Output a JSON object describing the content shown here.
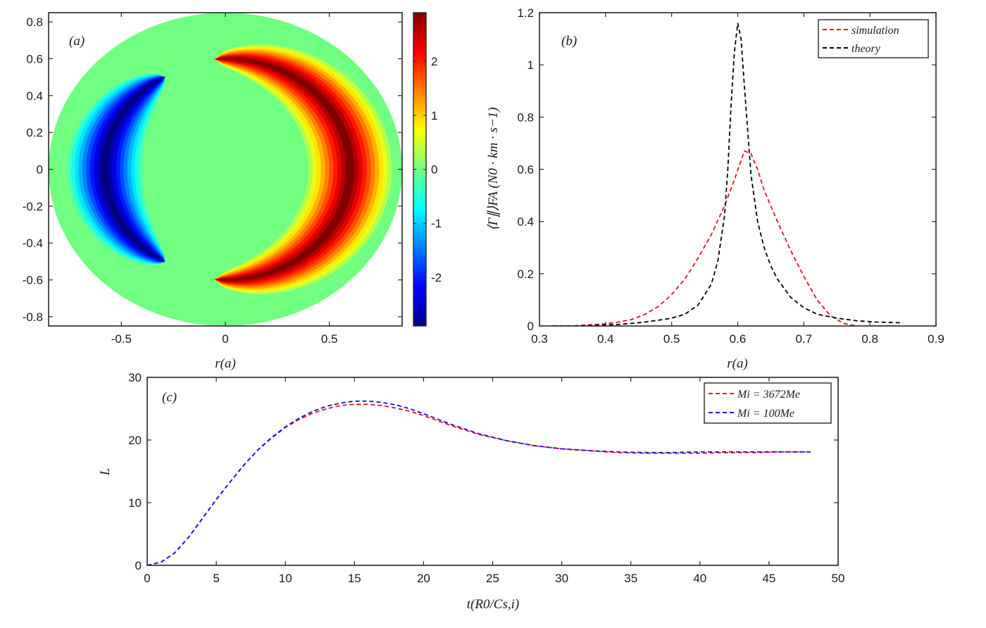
{
  "panels": {
    "a": {
      "label": "(a)"
    },
    "b": {
      "label": "(b)"
    },
    "c": {
      "label": "(c)"
    }
  },
  "colors": {
    "simulation": "#e8101a",
    "theory": "#000000",
    "mi_3672": "#e8101a",
    "mi_100": "#1010e0",
    "background_field": "#70ff80"
  },
  "chart_data": [
    {
      "type": "heatmap",
      "xlabel": "r(a)",
      "ylabel": "",
      "xlim": [
        -0.85,
        0.85
      ],
      "ylim": [
        -0.85,
        0.85
      ],
      "xticks": [
        "-0.5",
        "0",
        "0.5"
      ],
      "yticks": [
        "-0.8",
        "-0.6",
        "-0.4",
        "-0.2",
        "0",
        "0.2",
        "0.4",
        "0.6",
        "0.8"
      ],
      "colorbar": {
        "range": [
          -2.9,
          2.9
        ],
        "ticks": [
          "-2",
          "-1",
          "0",
          "1",
          "2"
        ],
        "colormap": "jet"
      },
      "field": {
        "domain_radius": 0.85,
        "positive_crescent": {
          "center_radius": 0.6,
          "peak_value": 2.9,
          "side": "right",
          "angular_extent_deg": [
            -95,
            95
          ]
        },
        "negative_crescent": {
          "center_radius": 0.6,
          "peak_value": -2.9,
          "side": "left",
          "angular_extent_deg": [
            120,
            240
          ]
        }
      }
    },
    {
      "type": "line",
      "xlabel": "r(a)",
      "ylabel": "⟨Γ∥⟩FA (N0 · km · s−1)",
      "xlim": [
        0.3,
        0.9
      ],
      "ylim": [
        0,
        1.2
      ],
      "xticks": [
        "0.3",
        "0.4",
        "0.5",
        "0.6",
        "0.7",
        "0.8",
        "0.9"
      ],
      "yticks": [
        "0",
        "0.2",
        "0.4",
        "0.6",
        "0.8",
        "1",
        "1.2"
      ],
      "legend": "top-right",
      "series": [
        {
          "name": "simulation",
          "x": [
            0.32,
            0.35,
            0.38,
            0.4,
            0.42,
            0.44,
            0.46,
            0.48,
            0.5,
            0.52,
            0.54,
            0.56,
            0.58,
            0.595,
            0.61,
            0.62,
            0.63,
            0.64,
            0.66,
            0.68,
            0.7,
            0.72,
            0.74,
            0.76,
            0.78,
            0.8,
            0.82,
            0.84
          ],
          "y": [
            0.0,
            0.0,
            0.005,
            0.008,
            0.015,
            0.025,
            0.045,
            0.075,
            0.12,
            0.18,
            0.26,
            0.35,
            0.46,
            0.56,
            0.67,
            0.66,
            0.6,
            0.52,
            0.4,
            0.29,
            0.19,
            0.1,
            0.04,
            0.01,
            0.0,
            0.0,
            0.0,
            0.0
          ]
        },
        {
          "name": "theory",
          "x": [
            0.32,
            0.35,
            0.38,
            0.4,
            0.42,
            0.44,
            0.46,
            0.48,
            0.5,
            0.52,
            0.54,
            0.56,
            0.57,
            0.58,
            0.585,
            0.59,
            0.595,
            0.6,
            0.605,
            0.61,
            0.615,
            0.62,
            0.63,
            0.64,
            0.65,
            0.66,
            0.68,
            0.7,
            0.72,
            0.75,
            0.78,
            0.81,
            0.85
          ],
          "y": [
            0.0,
            0.0,
            0.002,
            0.004,
            0.006,
            0.01,
            0.015,
            0.022,
            0.03,
            0.045,
            0.08,
            0.16,
            0.25,
            0.42,
            0.6,
            0.85,
            1.05,
            1.16,
            1.1,
            0.92,
            0.75,
            0.58,
            0.4,
            0.3,
            0.23,
            0.18,
            0.11,
            0.07,
            0.045,
            0.03,
            0.02,
            0.015,
            0.012
          ]
        }
      ]
    },
    {
      "type": "line",
      "xlabel": "t(R0/Cs,i)",
      "ylabel": "L",
      "xlim": [
        0,
        50
      ],
      "ylim": [
        0,
        30
      ],
      "xticks": [
        "0",
        "5",
        "10",
        "15",
        "20",
        "25",
        "30",
        "35",
        "40",
        "45",
        "50"
      ],
      "yticks": [
        "0",
        "10",
        "20",
        "30"
      ],
      "legend": "top-right",
      "series": [
        {
          "name": "Mi = 3672Me",
          "x": [
            0,
            1,
            2,
            3,
            4,
            5,
            6,
            7,
            8,
            9,
            10,
            11,
            12,
            13,
            14,
            15,
            16,
            17,
            18,
            19,
            20,
            22,
            24,
            26,
            28,
            30,
            32,
            34,
            36,
            38,
            40,
            42,
            44,
            46,
            48
          ],
          "y": [
            0,
            0.5,
            2,
            4.5,
            7.5,
            10.5,
            13.3,
            16,
            18.4,
            20.3,
            22,
            23.3,
            24.3,
            25,
            25.5,
            25.7,
            25.7,
            25.5,
            25.1,
            24.6,
            23.9,
            22.3,
            20.9,
            19.9,
            19.1,
            18.6,
            18.3,
            18.0,
            17.9,
            17.9,
            17.9,
            18.0,
            18.0,
            18.1,
            18.1
          ]
        },
        {
          "name": "Mi = 100Me",
          "x": [
            0,
            1,
            2,
            3,
            4,
            5,
            6,
            7,
            8,
            9,
            10,
            11,
            12,
            13,
            14,
            15,
            16,
            17,
            18,
            19,
            20,
            22,
            24,
            26,
            28,
            30,
            32,
            34,
            36,
            38,
            40,
            42,
            44,
            46,
            48
          ],
          "y": [
            0,
            0.5,
            2,
            4.5,
            7.5,
            10.5,
            13.3,
            16,
            18.4,
            20.4,
            22.1,
            23.5,
            24.6,
            25.4,
            25.9,
            26.2,
            26.2,
            26.0,
            25.6,
            25.0,
            24.2,
            22.5,
            21.0,
            19.9,
            19.1,
            18.6,
            18.3,
            18.1,
            18.0,
            18.0,
            18.1,
            18.1,
            18.1,
            18.1,
            18.1
          ]
        }
      ]
    }
  ]
}
